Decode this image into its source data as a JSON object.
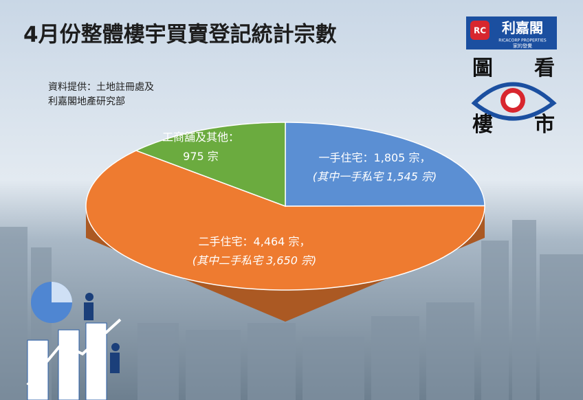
{
  "chart_data": {
    "type": "pie",
    "title": "4月份整體樓宇買賣登記統計宗數",
    "source_lines": [
      "資料提供：土地註冊處及",
      "利嘉閣地產研究部"
    ],
    "logo": {
      "name": "利嘉閣",
      "english": "RICACORP PROPERTIES",
      "slogan": "家的發覺",
      "mark": "RC",
      "corner_words": [
        "圖",
        "看",
        "樓",
        "市"
      ]
    },
    "categories": [
      "一手住宅：",
      "二手住宅：",
      "工商舖及其他："
    ],
    "values": [
      1805,
      4464,
      975
    ],
    "value_labels": [
      "1,805 宗，",
      "4,464 宗，",
      "975 宗"
    ],
    "notes": [
      "(其中一手私宅 1,545 宗)",
      "(其中二手私宅 3,650 宗)",
      null
    ],
    "colors": [
      "#5b8fd3",
      "#ee7b30",
      "#6bab3f"
    ]
  }
}
